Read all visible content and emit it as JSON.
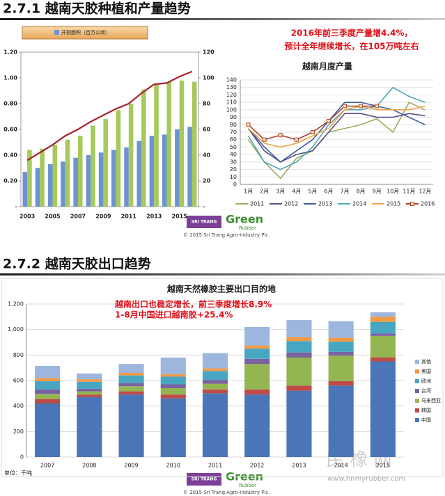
{
  "sections": [
    {
      "title": "2.7.1 越南天胶种植和产量趋势"
    },
    {
      "title": "2.7.2 越南天胶出口趋势"
    }
  ],
  "logos": [
    {
      "brand": "SRI TRANG",
      "name": "Green",
      "sub": "Rubber",
      "copyright": "© 2015 Sri Trang Agro-Industry Plc."
    },
    {
      "brand": "SRI TRANG",
      "name": "Green",
      "sub": "Rubber",
      "copyright": "© 2015 Sri Trang Agro-Industry Plc."
    }
  ],
  "watermark": {
    "text": "民 橡 网",
    "url": "www.hnmyrubber.com"
  },
  "chart_data": [
    {
      "type": "bar",
      "annotations": [
        "2016年前三季度产量增4.4%，",
        "预计全年继续增长，在105万吨左右"
      ],
      "categories": [
        "2003",
        null,
        "2005",
        null,
        "2007",
        null,
        "2009",
        null,
        "2011",
        null,
        "2013",
        null,
        "2015",
        null
      ],
      "series": [
        {
          "name": "开割面积（百万公顷）",
          "color": "#6d93d1",
          "values": [
            0.27,
            0.3,
            0.33,
            0.35,
            0.38,
            0.4,
            0.42,
            0.44,
            0.46,
            0.51,
            0.55,
            0.56,
            0.6,
            0.62
          ]
        },
        {
          "color": "#a6c95c",
          "axis": "y2",
          "values": [
            44,
            45,
            48,
            52,
            55,
            63,
            68,
            75,
            80,
            91,
            95,
            97,
            98,
            97
          ]
        },
        {
          "type": "line",
          "color": "#a8222a",
          "axis": "y2",
          "values": [
            36,
            42,
            48,
            55,
            60,
            66,
            71,
            76,
            80,
            88,
            95,
            96,
            101,
            105
          ]
        }
      ],
      "ylim": [
        0,
        1.2
      ],
      "yticks": [
        {
          "value": 0,
          "label": "-"
        },
        {
          "value": 0.2,
          "label": "0.20"
        },
        {
          "value": 0.4,
          "label": "0.40"
        },
        {
          "value": 0.6,
          "label": "0.60"
        },
        {
          "value": 0.8,
          "label": "0.80"
        },
        {
          "value": 1.0,
          "label": "1.00"
        },
        {
          "value": 1.2,
          "label": "1.20"
        }
      ],
      "y2lim": [
        0,
        120
      ],
      "y2ticks": [
        {
          "value": 0,
          "label": "-"
        },
        20,
        40,
        60,
        80,
        100,
        120
      ],
      "legend": "top"
    },
    {
      "type": "line",
      "title": "越南月度产量",
      "categories": [
        "1月",
        "2月",
        "3月",
        "4月",
        "5月",
        "6月",
        "7月",
        "8月",
        "9月",
        "10月",
        "11月",
        "12月"
      ],
      "series": [
        {
          "name": "2011",
          "color": "#9bae5a",
          "values": [
            60,
            30,
            8,
            35,
            45,
            70,
            75,
            80,
            88,
            70,
            110,
            100
          ]
        },
        {
          "name": "2012",
          "color": "#5b4a8a",
          "values": [
            75,
            45,
            30,
            40,
            45,
            70,
            95,
            95,
            90,
            90,
            95,
            92
          ]
        },
        {
          "name": "2013",
          "color": "#3f5c9e",
          "values": [
            75,
            50,
            30,
            45,
            60,
            85,
            110,
            110,
            105,
            100,
            90,
            80
          ]
        },
        {
          "name": "2014",
          "color": "#4ea5b5",
          "values": [
            65,
            30,
            20,
            30,
            50,
            80,
            100,
            100,
            105,
            130,
            118,
            110
          ]
        },
        {
          "name": "2015",
          "color": "#eba345",
          "values": [
            75,
            55,
            50,
            55,
            65,
            75,
            100,
            105,
            100,
            100,
            100,
            105
          ]
        },
        {
          "name": "2016",
          "color": "#a8402e",
          "marker": "square",
          "values": [
            80,
            60,
            66,
            60,
            70,
            85,
            105,
            105,
            105,
            null,
            null,
            null
          ]
        }
      ],
      "ylim": [
        0,
        140
      ],
      "yticks": [
        0,
        10,
        20,
        30,
        40,
        50,
        60,
        70,
        80,
        90,
        100,
        110,
        120,
        130,
        140
      ],
      "grid": true,
      "legend": "bottom"
    },
    {
      "type": "stacked_bar",
      "title": "越南天然橡胶主要出口目的地",
      "annotations": [
        "越南出口也稳定增长，前三季度增长8.9%",
        "1-8月中国进口越南胶+25.4%"
      ],
      "unit": "单位：千吨",
      "categories": [
        "2007",
        "2008",
        "2009",
        "2010",
        "2011",
        "2012",
        "2013",
        "2014",
        "2015"
      ],
      "series": [
        {
          "name": "中国",
          "color": "#4a76b8",
          "values": [
            420,
            470,
            490,
            460,
            500,
            490,
            520,
            560,
            750
          ]
        },
        {
          "name": "韩国",
          "color": "#bf4a47",
          "values": [
            35,
            20,
            25,
            30,
            30,
            40,
            40,
            35,
            30
          ]
        },
        {
          "name": "马来西亚",
          "color": "#93b552",
          "values": [
            40,
            25,
            40,
            50,
            45,
            200,
            220,
            200,
            170
          ]
        },
        {
          "name": "台湾",
          "color": "#7a61a0",
          "values": [
            35,
            20,
            25,
            30,
            30,
            40,
            40,
            30,
            20
          ]
        },
        {
          "name": "欧洲",
          "color": "#47a7c2",
          "values": [
            65,
            55,
            60,
            60,
            70,
            80,
            90,
            80,
            90
          ]
        },
        {
          "name": "美国",
          "color": "#f29a45",
          "values": [
            25,
            20,
            20,
            20,
            20,
            25,
            30,
            30,
            40
          ]
        },
        {
          "name": "其他",
          "color": "#9db6de",
          "values": [
            95,
            45,
            70,
            130,
            120,
            145,
            135,
            130,
            35
          ]
        }
      ],
      "ylim": [
        0,
        1200
      ],
      "yticks": [
        0,
        200,
        400,
        600,
        800,
        {
          "value": 1000,
          "label": "1,000"
        },
        {
          "value": 1200,
          "label": "1,200"
        }
      ],
      "grid": true,
      "legend": "right"
    }
  ]
}
